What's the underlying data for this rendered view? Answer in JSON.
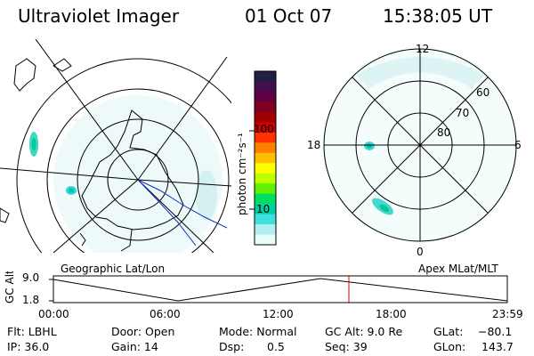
{
  "header": {
    "instrument": "Ultraviolet Imager",
    "date": "01 Oct 07",
    "time": "15:38:05 UT"
  },
  "colorbar": {
    "unit_label": "photon cm⁻²s⁻¹",
    "ticks": [
      "100",
      "10"
    ],
    "colors_top_to_bottom": [
      "#202040",
      "#401050",
      "#600040",
      "#800020",
      "#a00000",
      "#d00000",
      "#ff3000",
      "#ff8000",
      "#ffc000",
      "#ffff00",
      "#c0ff00",
      "#60f000",
      "#00e060",
      "#00d0a0",
      "#40e0e0",
      "#b0f0f0",
      "#e8fcfc"
    ]
  },
  "geographic_panel": {
    "label": "Geographic Lat/Lon"
  },
  "apex_panel": {
    "label": "Apex MLat/MLT",
    "lat_labels": [
      "60",
      "70",
      "80"
    ],
    "mlt_labels": {
      "top": "12",
      "left": "18",
      "right": "6",
      "bottom": "0"
    }
  },
  "altitude_plot": {
    "ylabel": "GC Alt",
    "yticks": [
      "9.0",
      "1.8"
    ],
    "xticks": [
      "00:00",
      "06:00",
      "12:00",
      "18:00",
      "23:59"
    ],
    "marker_color": "#e00000"
  },
  "info": {
    "flt": "Flt: LBHL",
    "ip": "IP: 36.0",
    "door": "Door: Open",
    "gain": "Gain: 14",
    "mode": "Mode: Normal",
    "dsp_label": "Dsp:",
    "dsp_value": "0.5",
    "gcalt": "GC Alt: 9.0 Re",
    "seq": "Seq: 39",
    "glat_label": "GLat:",
    "glat_value": "−80.1",
    "glon_label": "GLon:",
    "glon_value": "143.7"
  }
}
